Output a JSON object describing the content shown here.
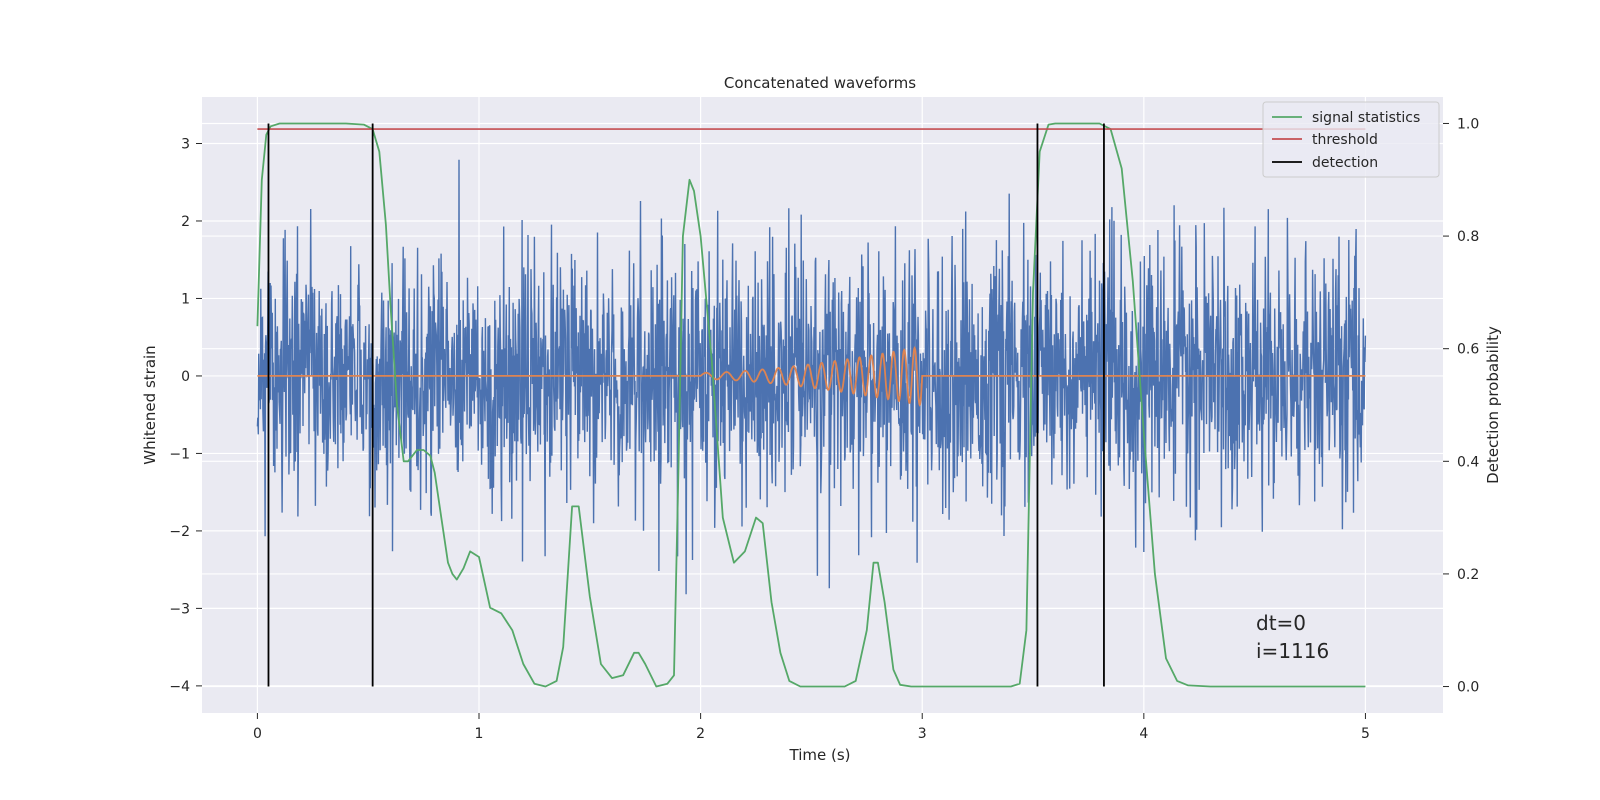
{
  "colors": {
    "background": "#ffffff",
    "axes_face": "#eaeaf2",
    "grid": "#ffffff",
    "strain": "#4c72b0",
    "waveform": "#dd8452",
    "signal_statistics": "#55a868",
    "threshold": "#c44e52",
    "detection": "#000000"
  },
  "chart_data": {
    "type": "line",
    "title": "Concatenated waveforms",
    "xlabel": "Time (s)",
    "ylabel": "Whitened strain",
    "y2label": "Detection probability",
    "xlim": [
      -0.25,
      5.35
    ],
    "ylim": [
      -4.35,
      3.6
    ],
    "y2lim": [
      -0.047,
      1.047
    ],
    "xticks": [
      0,
      1,
      2,
      3,
      4,
      5
    ],
    "yticks": [
      -4,
      -3,
      -2,
      -1,
      0,
      1,
      2,
      3
    ],
    "y2ticks": [
      0.0,
      0.2,
      0.4,
      0.6,
      0.8,
      1.0
    ],
    "x_tick_labels": [
      "0",
      "1",
      "2",
      "3",
      "4",
      "5"
    ],
    "y_tick_labels": [
      "−4",
      "−3",
      "−2",
      "−1",
      "0",
      "1",
      "2",
      "3"
    ],
    "y2_tick_labels": [
      "0.0",
      "0.2",
      "0.4",
      "0.6",
      "0.8",
      "1.0"
    ],
    "grid": true,
    "legend_position": "top-right",
    "legend": [
      "signal statistics",
      "threshold",
      "detection"
    ],
    "annotations": [
      "dt=0",
      "i=1116"
    ],
    "series": [
      {
        "name": "signal statistics",
        "axis": "right",
        "x": [
          0.0,
          0.02,
          0.04,
          0.06,
          0.1,
          0.2,
          0.3,
          0.4,
          0.48,
          0.52,
          0.55,
          0.58,
          0.6,
          0.63,
          0.66,
          0.68,
          0.7,
          0.72,
          0.75,
          0.78,
          0.8,
          0.83,
          0.86,
          0.88,
          0.9,
          0.93,
          0.96,
          1.0,
          1.05,
          1.1,
          1.15,
          1.2,
          1.25,
          1.3,
          1.35,
          1.38,
          1.42,
          1.45,
          1.5,
          1.55,
          1.6,
          1.65,
          1.7,
          1.72,
          1.75,
          1.8,
          1.85,
          1.88,
          1.9,
          1.92,
          1.95,
          1.97,
          2.0,
          2.05,
          2.1,
          2.15,
          2.2,
          2.25,
          2.28,
          2.32,
          2.36,
          2.4,
          2.45,
          2.5,
          2.55,
          2.6,
          2.65,
          2.7,
          2.75,
          2.78,
          2.8,
          2.83,
          2.87,
          2.9,
          2.95,
          3.0,
          3.2,
          3.4,
          3.44,
          3.47,
          3.5,
          3.53,
          3.57,
          3.6,
          3.7,
          3.8,
          3.85,
          3.9,
          3.95,
          4.0,
          4.05,
          4.1,
          4.15,
          4.2,
          4.3,
          4.5,
          4.7,
          5.0
        ],
        "values": [
          0.64,
          0.9,
          0.98,
          0.995,
          1.0,
          1.0,
          1.0,
          1.0,
          0.998,
          0.99,
          0.95,
          0.82,
          0.68,
          0.5,
          0.4,
          0.4,
          0.41,
          0.42,
          0.42,
          0.41,
          0.38,
          0.3,
          0.22,
          0.2,
          0.19,
          0.21,
          0.24,
          0.23,
          0.14,
          0.13,
          0.1,
          0.04,
          0.005,
          0.0,
          0.01,
          0.07,
          0.32,
          0.32,
          0.16,
          0.04,
          0.015,
          0.02,
          0.06,
          0.06,
          0.04,
          0.0,
          0.005,
          0.02,
          0.39,
          0.8,
          0.9,
          0.88,
          0.8,
          0.58,
          0.3,
          0.22,
          0.24,
          0.3,
          0.29,
          0.15,
          0.06,
          0.01,
          0.0,
          0.0,
          0.0,
          0.0,
          0.0,
          0.01,
          0.1,
          0.22,
          0.22,
          0.15,
          0.03,
          0.003,
          0.0,
          0.0,
          0.0,
          0.0,
          0.005,
          0.1,
          0.7,
          0.95,
          0.998,
          1.0,
          1.0,
          1.0,
          0.99,
          0.92,
          0.72,
          0.45,
          0.2,
          0.05,
          0.01,
          0.002,
          0.0,
          0.0,
          0.0,
          0.0
        ]
      },
      {
        "name": "threshold",
        "axis": "right",
        "x": [
          0.0,
          5.0
        ],
        "values": [
          0.99,
          0.99
        ]
      },
      {
        "name": "detection",
        "axis": "right",
        "type": "vlines",
        "x": [
          0.05,
          0.52,
          3.52,
          3.82
        ],
        "range": [
          0.0,
          1.0
        ]
      }
    ]
  }
}
